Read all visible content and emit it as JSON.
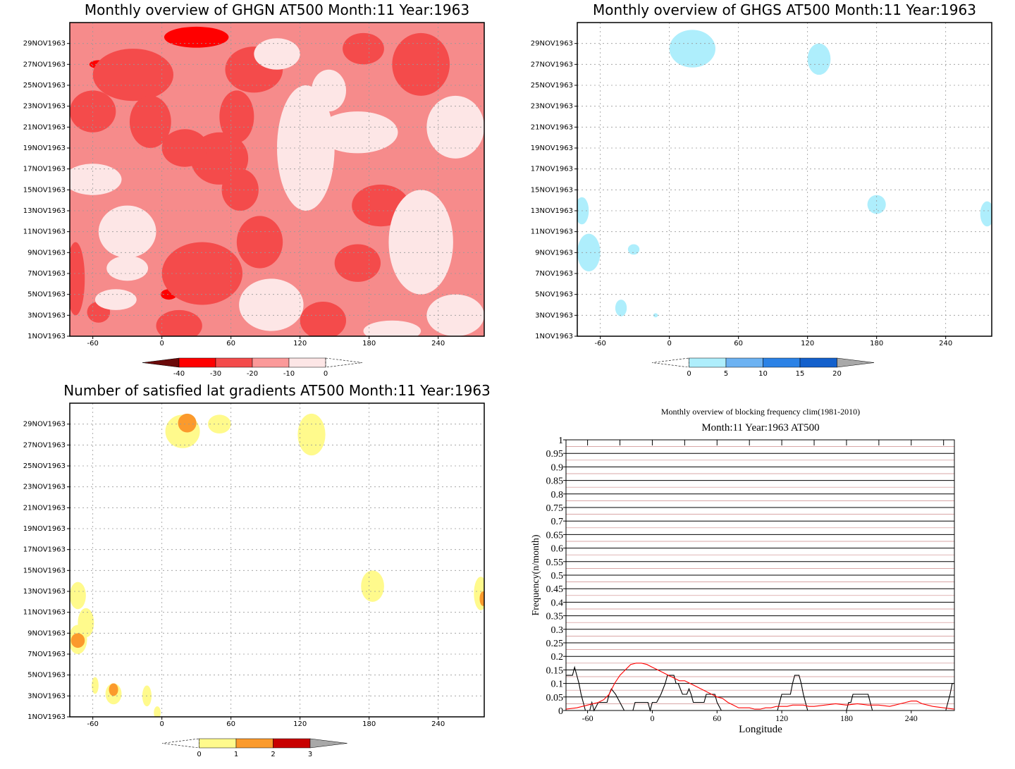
{
  "chart_data": [
    {
      "type": "heatmap",
      "title": "Monthly overview of GHGN AT500 Month:11 Year:1963",
      "x_ticks": [
        -60,
        0,
        60,
        120,
        180,
        240
      ],
      "xlim": [
        -80,
        280
      ],
      "y_ticks": [
        "1NOV1963",
        "3NOV1963",
        "5NOV1963",
        "7NOV1963",
        "9NOV1963",
        "11NOV1963",
        "13NOV1963",
        "15NOV1963",
        "17NOV1963",
        "19NOV1963",
        "21NOV1963",
        "23NOV1963",
        "25NOV1963",
        "27NOV1963",
        "29NOV1963"
      ],
      "colorbar": {
        "labels": [
          "-40",
          "-30",
          "-20",
          "-10",
          "0"
        ],
        "colors": [
          "#6b0a0a",
          "#ff0000",
          "#f44b4b",
          "#fb9999",
          "#fde6e6"
        ]
      },
      "fill": "#f68b8b",
      "blobs": [
        {
          "x": 30,
          "day": 29.6,
          "rx": 28,
          "ry": 1.0,
          "v": -30
        },
        {
          "x": 220,
          "day": 29.2,
          "rx": 6,
          "ry": 0.6,
          "v": -30
        },
        {
          "x": 232,
          "day": 26.5,
          "rx": 10,
          "ry": 0.7,
          "v": -30
        },
        {
          "x": 6,
          "day": 5.0,
          "rx": 7,
          "ry": 0.5,
          "v": -30
        },
        {
          "x": -55,
          "day": 27.0,
          "rx": 8,
          "ry": 0.4,
          "v": -30
        },
        {
          "x": -25,
          "day": 26.0,
          "rx": 35,
          "ry": 2.5,
          "v": -20
        },
        {
          "x": 80,
          "day": 26.5,
          "rx": 25,
          "ry": 2.2,
          "v": -20
        },
        {
          "x": 225,
          "day": 27.0,
          "rx": 25,
          "ry": 3.0,
          "v": -20
        },
        {
          "x": 175,
          "day": 28.5,
          "rx": 18,
          "ry": 1.5,
          "v": -20
        },
        {
          "x": -60,
          "day": 22.5,
          "rx": 20,
          "ry": 2.0,
          "v": -20
        },
        {
          "x": -10,
          "day": 21.5,
          "rx": 18,
          "ry": 2.5,
          "v": -20
        },
        {
          "x": 65,
          "day": 22.0,
          "rx": 15,
          "ry": 2.5,
          "v": -20
        },
        {
          "x": 50,
          "day": 18.0,
          "rx": 25,
          "ry": 2.5,
          "v": -20
        },
        {
          "x": 20,
          "day": 19.0,
          "rx": 20,
          "ry": 1.8,
          "v": -20
        },
        {
          "x": 190,
          "day": 13.5,
          "rx": 25,
          "ry": 2.0,
          "v": -20
        },
        {
          "x": 68,
          "day": 15.0,
          "rx": 16,
          "ry": 2.0,
          "v": -20
        },
        {
          "x": 35,
          "day": 7.0,
          "rx": 35,
          "ry": 3.0,
          "v": -20
        },
        {
          "x": 85,
          "day": 10.0,
          "rx": 20,
          "ry": 2.5,
          "v": -20
        },
        {
          "x": 170,
          "day": 8.0,
          "rx": 20,
          "ry": 1.8,
          "v": -20
        },
        {
          "x": 140,
          "day": 2.5,
          "rx": 20,
          "ry": 1.8,
          "v": -20
        },
        {
          "x": 15,
          "day": 2.0,
          "rx": 20,
          "ry": 1.5,
          "v": -20
        },
        {
          "x": -55,
          "day": 3.3,
          "rx": 10,
          "ry": 1.0,
          "v": -20
        },
        {
          "x": -75,
          "day": 6.5,
          "rx": 8,
          "ry": 3.5,
          "v": -20
        },
        {
          "x": 125,
          "day": 19.0,
          "rx": 25,
          "ry": 6.0,
          "v": -5
        },
        {
          "x": 170,
          "day": 20.5,
          "rx": 35,
          "ry": 2.0,
          "v": -5
        },
        {
          "x": 225,
          "day": 10.0,
          "rx": 28,
          "ry": 5.0,
          "v": -5
        },
        {
          "x": 255,
          "day": 21.0,
          "rx": 25,
          "ry": 3.0,
          "v": -5
        },
        {
          "x": 255,
          "day": 3.0,
          "rx": 25,
          "ry": 2.0,
          "v": -5
        },
        {
          "x": -60,
          "day": 16.0,
          "rx": 25,
          "ry": 1.5,
          "v": -5
        },
        {
          "x": -30,
          "day": 11.0,
          "rx": 25,
          "ry": 2.5,
          "v": -5
        },
        {
          "x": -30,
          "day": 7.5,
          "rx": 18,
          "ry": 1.2,
          "v": -5
        },
        {
          "x": 95,
          "day": 4.0,
          "rx": 28,
          "ry": 2.5,
          "v": -5
        },
        {
          "x": -40,
          "day": 4.5,
          "rx": 18,
          "ry": 1.0,
          "v": -5
        },
        {
          "x": 100,
          "day": 28.0,
          "rx": 20,
          "ry": 1.5,
          "v": -5
        },
        {
          "x": 145,
          "day": 24.5,
          "rx": 15,
          "ry": 2.0,
          "v": -5
        },
        {
          "x": 200,
          "day": 1.5,
          "rx": 25,
          "ry": 1.0,
          "v": -5
        }
      ]
    },
    {
      "type": "heatmap",
      "title": "Monthly overview of GHGS AT500 Month:11 Year:1963",
      "x_ticks": [
        -60,
        0,
        60,
        120,
        180,
        240
      ],
      "xlim": [
        -80,
        280
      ],
      "y_ticks": [
        "1NOV1963",
        "3NOV1963",
        "5NOV1963",
        "7NOV1963",
        "9NOV1963",
        "11NOV1963",
        "13NOV1963",
        "15NOV1963",
        "17NOV1963",
        "19NOV1963",
        "21NOV1963",
        "23NOV1963",
        "25NOV1963",
        "27NOV1963",
        "29NOV1963"
      ],
      "colorbar": {
        "labels": [
          "0",
          "5",
          "10",
          "15",
          "20"
        ],
        "colors": [
          "#aeeefc",
          "#6cb2f2",
          "#2b82e6",
          "#1360cc",
          "#a8a8a8"
        ]
      },
      "blobs": [
        {
          "x": 20,
          "day": 28.5,
          "rx": 20,
          "ry": 1.8,
          "v": 2
        },
        {
          "x": 130,
          "day": 27.5,
          "rx": 10,
          "ry": 1.5,
          "v": 2
        },
        {
          "x": 180,
          "day": 13.6,
          "rx": 8,
          "ry": 0.9,
          "v": 2
        },
        {
          "x": -76,
          "day": 13.0,
          "rx": 6,
          "ry": 1.3,
          "v": 2
        },
        {
          "x": 276,
          "day": 12.7,
          "rx": 6,
          "ry": 1.2,
          "v": 2
        },
        {
          "x": -70,
          "day": 9.0,
          "rx": 10,
          "ry": 1.8,
          "v": 2
        },
        {
          "x": -31,
          "day": 9.3,
          "rx": 5,
          "ry": 0.5,
          "v": 2
        },
        {
          "x": -42,
          "day": 3.7,
          "rx": 5,
          "ry": 0.8,
          "v": 2
        },
        {
          "x": -12,
          "day": 3.0,
          "rx": 2,
          "ry": 0.2,
          "v": 2
        }
      ]
    },
    {
      "type": "heatmap",
      "title": "Number of satisfied lat gradients AT500 Month:11 Year:1963",
      "x_ticks": [
        -60,
        0,
        60,
        120,
        180,
        240
      ],
      "xlim": [
        -80,
        280
      ],
      "y_ticks": [
        "1NOV1963",
        "3NOV1963",
        "5NOV1963",
        "7NOV1963",
        "9NOV1963",
        "11NOV1963",
        "13NOV1963",
        "15NOV1963",
        "17NOV1963",
        "19NOV1963",
        "21NOV1963",
        "23NOV1963",
        "25NOV1963",
        "27NOV1963",
        "29NOV1963"
      ],
      "colorbar": {
        "labels": [
          "0",
          "1",
          "2",
          "3"
        ],
        "colors": [
          "#fffa8c",
          "#fb9a2c",
          "#c80000",
          "#a8a8a8"
        ]
      },
      "blobs": [
        {
          "x": 18,
          "day": 28.3,
          "rx": 15,
          "ry": 1.6,
          "v": 0.5
        },
        {
          "x": 50,
          "day": 29.0,
          "rx": 10,
          "ry": 0.9,
          "v": 0.5
        },
        {
          "x": 130,
          "day": 28.0,
          "rx": 12,
          "ry": 2.0,
          "v": 0.5
        },
        {
          "x": 183,
          "day": 13.5,
          "rx": 10,
          "ry": 1.5,
          "v": 0.5
        },
        {
          "x": -73,
          "day": 12.6,
          "rx": 7,
          "ry": 1.3,
          "v": 0.5
        },
        {
          "x": 277,
          "day": 12.8,
          "rx": 6,
          "ry": 1.6,
          "v": 0.5
        },
        {
          "x": -66,
          "day": 10.0,
          "rx": 7,
          "ry": 1.4,
          "v": 0.5
        },
        {
          "x": -73,
          "day": 8.4,
          "rx": 8,
          "ry": 1.4,
          "v": 0.5
        },
        {
          "x": -58,
          "day": 4.0,
          "rx": 3,
          "ry": 0.8,
          "v": 0.5
        },
        {
          "x": -42,
          "day": 3.2,
          "rx": 7,
          "ry": 1.0,
          "v": 0.5
        },
        {
          "x": -13,
          "day": 3.0,
          "rx": 4,
          "ry": 1.0,
          "v": 0.5
        },
        {
          "x": -4,
          "day": 1.4,
          "rx": 3,
          "ry": 0.6,
          "v": 0.5
        },
        {
          "x": 22,
          "day": 29.1,
          "rx": 8,
          "ry": 0.9,
          "v": 1.5
        },
        {
          "x": -73,
          "day": 8.3,
          "rx": 6,
          "ry": 0.7,
          "v": 1.5
        },
        {
          "x": -42,
          "day": 3.6,
          "rx": 4,
          "ry": 0.6,
          "v": 1.5
        },
        {
          "x": 279,
          "day": 12.3,
          "rx": 3,
          "ry": 0.7,
          "v": 1.5
        }
      ]
    },
    {
      "type": "line",
      "title": "Monthly overview of blocking frequency clim(1981-2010)",
      "subtitle": "Month:11 Year:1963  AT500",
      "xlabel": "Longitude",
      "ylabel": "Frequency(n/month)",
      "xlim": [
        -80,
        280
      ],
      "ylim": [
        0,
        1
      ],
      "x_ticks": [
        -60,
        0,
        60,
        120,
        180,
        240
      ],
      "y_ticks": [
        "0",
        "0.05",
        "0.1",
        "0.15",
        "0.2",
        "0.25",
        "0.3",
        "0.35",
        "0.4",
        "0.45",
        "0.5",
        "0.55",
        "0.6",
        "0.65",
        "0.7",
        "0.75",
        "0.8",
        "0.85",
        "0.9",
        "0.95",
        "1"
      ],
      "series": [
        {
          "color": "#000000",
          "x": [
            -80,
            -78,
            -74,
            -72,
            -70,
            -68,
            -66,
            -62,
            -58,
            -56,
            -54,
            -50,
            -46,
            -42,
            -40,
            -38,
            -34,
            -30,
            -26,
            -22,
            -18,
            -16,
            -14,
            -10,
            -8,
            -6,
            -4,
            -2,
            0,
            4,
            8,
            12,
            14,
            16,
            18,
            20,
            22,
            24,
            26,
            28,
            30,
            32,
            34,
            36,
            38,
            40,
            42,
            44,
            46,
            48,
            50,
            54,
            56,
            58,
            60,
            64,
            68,
            72,
            76,
            80,
            84,
            88,
            92,
            96,
            100,
            104,
            108,
            112,
            114,
            116,
            118,
            120,
            122,
            124,
            126,
            128,
            130,
            132,
            134,
            136,
            138,
            140,
            144,
            148,
            152,
            156,
            160,
            164,
            168,
            172,
            176,
            178,
            180,
            182,
            184,
            186,
            188,
            190,
            192,
            194,
            196,
            198,
            200,
            202,
            204,
            206,
            210,
            214,
            218,
            222,
            226,
            230,
            234,
            238,
            242,
            246,
            250,
            254,
            258,
            262,
            266,
            268,
            270,
            272,
            274,
            276,
            278,
            280
          ],
          "y": [
            0.13,
            0.13,
            0.13,
            0.16,
            0.13,
            0.1,
            0.06,
            0,
            0,
            0.03,
            0,
            0.03,
            0.03,
            0.03,
            0.06,
            0.08,
            0.06,
            0.03,
            0,
            0,
            0,
            0.03,
            0.03,
            0.03,
            0.03,
            0.03,
            0.03,
            0,
            0.03,
            0.03,
            0.06,
            0.1,
            0.13,
            0.13,
            0.13,
            0.13,
            0.1,
            0.1,
            0.08,
            0.06,
            0.06,
            0.06,
            0.08,
            0.06,
            0.03,
            0.03,
            0.03,
            0.03,
            0.03,
            0.03,
            0.06,
            0.06,
            0.06,
            0.06,
            0.03,
            0,
            0,
            0,
            0,
            0,
            0,
            0,
            0,
            0,
            0,
            0,
            0,
            0,
            0,
            0,
            0.03,
            0.06,
            0.06,
            0.06,
            0.06,
            0.06,
            0.1,
            0.13,
            0.13,
            0.13,
            0.1,
            0.06,
            0,
            0,
            0,
            0,
            0,
            0,
            0,
            0,
            0,
            0,
            0,
            0.03,
            0.03,
            0.06,
            0.06,
            0.06,
            0.06,
            0.06,
            0.06,
            0.06,
            0.06,
            0.03,
            0,
            0,
            0,
            0,
            0,
            0,
            0,
            0,
            0,
            0,
            0,
            0,
            0,
            0,
            0,
            0,
            0,
            0,
            0,
            0,
            0.03,
            0.06,
            0.1,
            0.1
          ]
        },
        {
          "color": "#ff0000",
          "x": [
            -80,
            -70,
            -60,
            -50,
            -45,
            -40,
            -35,
            -30,
            -25,
            -20,
            -15,
            -10,
            -5,
            0,
            5,
            10,
            15,
            20,
            25,
            30,
            35,
            40,
            45,
            50,
            55,
            60,
            65,
            70,
            75,
            80,
            85,
            90,
            95,
            100,
            105,
            110,
            115,
            120,
            125,
            130,
            135,
            140,
            145,
            150,
            160,
            170,
            180,
            190,
            200,
            210,
            220,
            230,
            240,
            245,
            250,
            260,
            270,
            280
          ],
          "y": [
            0.005,
            0.01,
            0.02,
            0.03,
            0.04,
            0.06,
            0.1,
            0.13,
            0.15,
            0.17,
            0.175,
            0.175,
            0.17,
            0.16,
            0.15,
            0.14,
            0.13,
            0.12,
            0.11,
            0.11,
            0.1,
            0.09,
            0.08,
            0.07,
            0.06,
            0.05,
            0.045,
            0.03,
            0.02,
            0.01,
            0.01,
            0.01,
            0.005,
            0.005,
            0.01,
            0.01,
            0.015,
            0.015,
            0.015,
            0.02,
            0.02,
            0.02,
            0.015,
            0.015,
            0.02,
            0.025,
            0.02,
            0.025,
            0.02,
            0.02,
            0.015,
            0.025,
            0.035,
            0.035,
            0.025,
            0.015,
            0.01,
            0.005
          ]
        }
      ]
    }
  ]
}
